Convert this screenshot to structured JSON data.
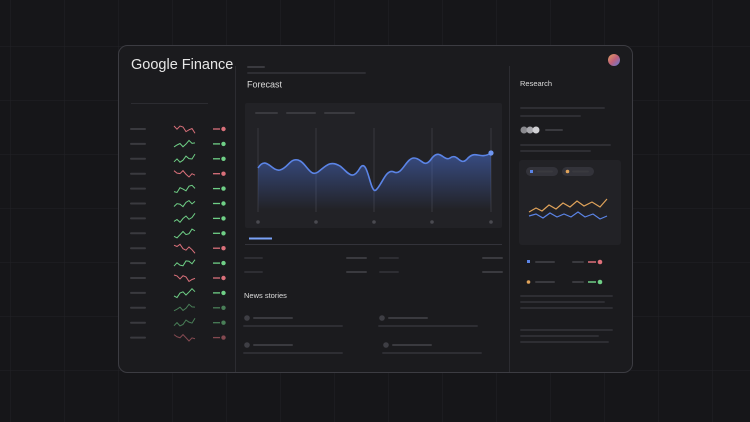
{
  "header": {
    "title": "Google Finance"
  },
  "forecast": {
    "title": "Forecast"
  },
  "news": {
    "title": "News stories"
  },
  "research": {
    "title": "Research"
  }
}
